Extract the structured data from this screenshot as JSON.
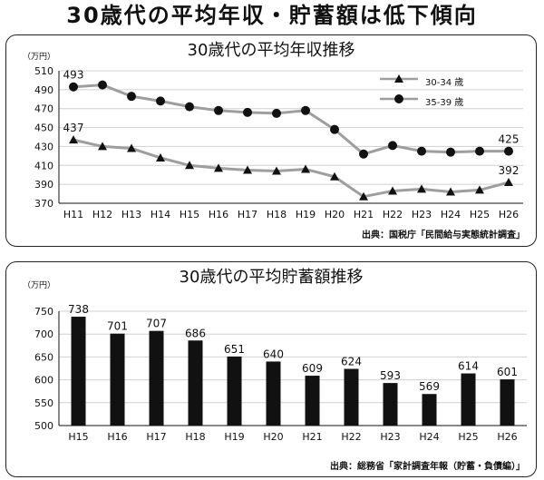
{
  "page": {
    "title": "30歳代の平均年収・貯蓄額は低下傾向"
  },
  "chart_data": [
    {
      "type": "line",
      "title": "30歳代の平均年収推移",
      "unit": "（万円）",
      "source": "出典：国税庁「民間給与実態統計調査」",
      "categories": [
        "H11",
        "H12",
        "H13",
        "H14",
        "H15",
        "H16",
        "H17",
        "H18",
        "H19",
        "H20",
        "H21",
        "H22",
        "H23",
        "H24",
        "H25",
        "H26"
      ],
      "ylim": [
        370,
        510
      ],
      "yticks": [
        370,
        390,
        410,
        430,
        450,
        470,
        490,
        510
      ],
      "grid": true,
      "legend": "top-right",
      "series": [
        {
          "name": "30-34 歳",
          "marker": "triangle",
          "values": [
            437,
            430,
            428,
            418,
            410,
            407,
            405,
            404,
            406,
            398,
            377,
            383,
            385,
            382,
            384,
            392
          ],
          "labeled": {
            "0": "437",
            "15": "392"
          }
        },
        {
          "name": "35-39 歳",
          "marker": "circle",
          "values": [
            493,
            495,
            483,
            478,
            472,
            468,
            466,
            465,
            468,
            448,
            422,
            431,
            425,
            424,
            425,
            425
          ],
          "labeled": {
            "0": "493",
            "15": "425"
          }
        }
      ],
      "line_color": "#9e9e9e",
      "marker_color": "#111111"
    },
    {
      "type": "bar",
      "title": "30歳代の平均貯蓄額推移",
      "unit": "（万円）",
      "source": "出典：総務省「家計調査年報（貯蓄・負債編）」",
      "categories": [
        "H15",
        "H16",
        "H17",
        "H18",
        "H19",
        "H20",
        "H21",
        "H22",
        "H23",
        "H24",
        "H25",
        "H26"
      ],
      "values": [
        738,
        701,
        707,
        686,
        651,
        640,
        609,
        624,
        593,
        569,
        614,
        601
      ],
      "ylim": [
        500,
        750
      ],
      "yticks": [
        500,
        550,
        600,
        650,
        700,
        750
      ],
      "grid": true,
      "bar_color": "#111111"
    }
  ]
}
